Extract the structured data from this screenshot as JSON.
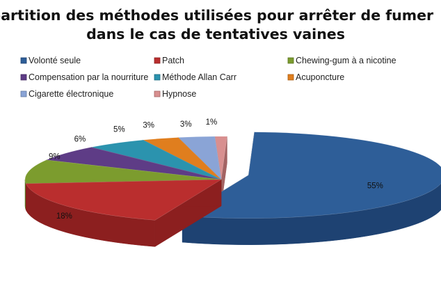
{
  "chart_data": {
    "type": "pie",
    "title_lines": [
      "Répartition des méthodes utilisées pour arrêter de fumer",
      "dans le cas de tentatives vaines"
    ],
    "legend_position": "top",
    "slices": [
      {
        "label": "Volonté seule",
        "value": 55,
        "value_label": "55%",
        "color": "#2E5E98",
        "side": "#1E4272",
        "exploded": true
      },
      {
        "label": "Patch",
        "value": 18,
        "value_label": "18%",
        "color": "#BA2E2E",
        "side": "#8C1F1F",
        "exploded": false
      },
      {
        "label": "Chewing-gum à a nicotine",
        "value": 9,
        "value_label": "9%",
        "color": "#7C9C2E",
        "side": "#5B7420",
        "exploded": false
      },
      {
        "label": "Compensation par la nourriture",
        "value": 6,
        "value_label": "6%",
        "color": "#5E3C86",
        "side": "#432A62",
        "exploded": false
      },
      {
        "label": "Méthode Allan Carr",
        "value": 5,
        "value_label": "5%",
        "color": "#2B93AE",
        "side": "#1C6B80",
        "exploded": false
      },
      {
        "label": "Acuponcture",
        "value": 3,
        "value_label": "3%",
        "color": "#E07E1E",
        "side": "#A85C12",
        "exploded": false
      },
      {
        "label": "Cigarette électronique",
        "value": 3,
        "value_label": "3%",
        "color": "#8AA4D6",
        "side": "#60789E",
        "exploded": false
      },
      {
        "label": "Hypnose",
        "value": 1,
        "value_label": "1%",
        "color": "#D88F8F",
        "side": "#A36363",
        "exploded": false
      }
    ]
  }
}
